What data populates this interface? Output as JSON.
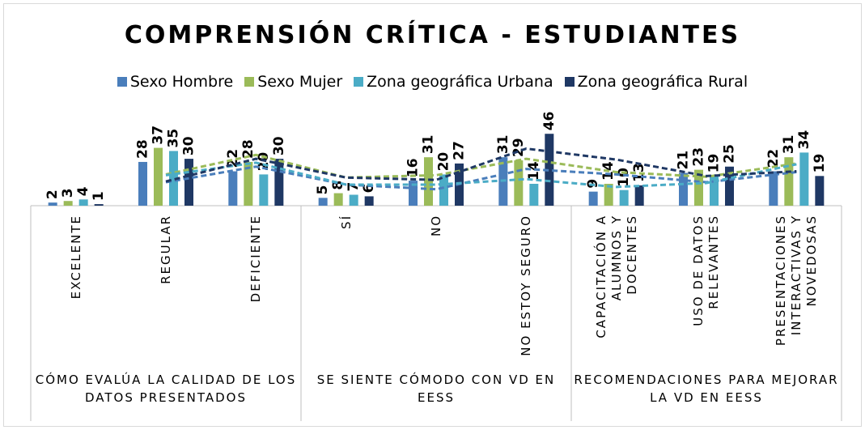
{
  "chart_data": {
    "type": "bar",
    "title": "COMPRENSIÓN CRÍTICA - ESTUDIANTES",
    "groups": [
      {
        "name": "CÓMO EVALÚA LA CALIDAD DE LOS DATOS PRESENTADOS",
        "categories": [
          "EXCELENTE",
          "REGULAR",
          "DEFICIENTE"
        ]
      },
      {
        "name": "SE SIENTE CÓMODO CON VD EN EESS",
        "categories": [
          "SÍ",
          "NO",
          "NO ESTOY SEGURO"
        ]
      },
      {
        "name": "RECOMENDACIONES PARA MEJORAR LA VD EN EESS",
        "categories": [
          "CAPACITACIÓN A ALUMNOS Y DOCENTES",
          "USO DE DATOS RELEVANTES",
          "PRESENTACIONES INTERACTIVAS Y NOVEDOSAS"
        ]
      }
    ],
    "series": [
      {
        "name": "Sexo Hombre",
        "color": "#4a7ebb",
        "values": [
          2,
          28,
          22,
          5,
          16,
          31,
          9,
          21,
          22
        ]
      },
      {
        "name": "Sexo Mujer",
        "color": "#9bbb59",
        "values": [
          3,
          37,
          28,
          8,
          31,
          29,
          14,
          23,
          31
        ]
      },
      {
        "name": "Zona geográfica Urbana",
        "color": "#4bacc6",
        "values": [
          4,
          35,
          20,
          7,
          20,
          14,
          10,
          19,
          34
        ]
      },
      {
        "name": "Zona geográfica Rural",
        "color": "#1f3864",
        "values": [
          1,
          30,
          30,
          6,
          27,
          46,
          13,
          25,
          19
        ]
      }
    ],
    "trendline": "moving_average",
    "legend": "top"
  }
}
